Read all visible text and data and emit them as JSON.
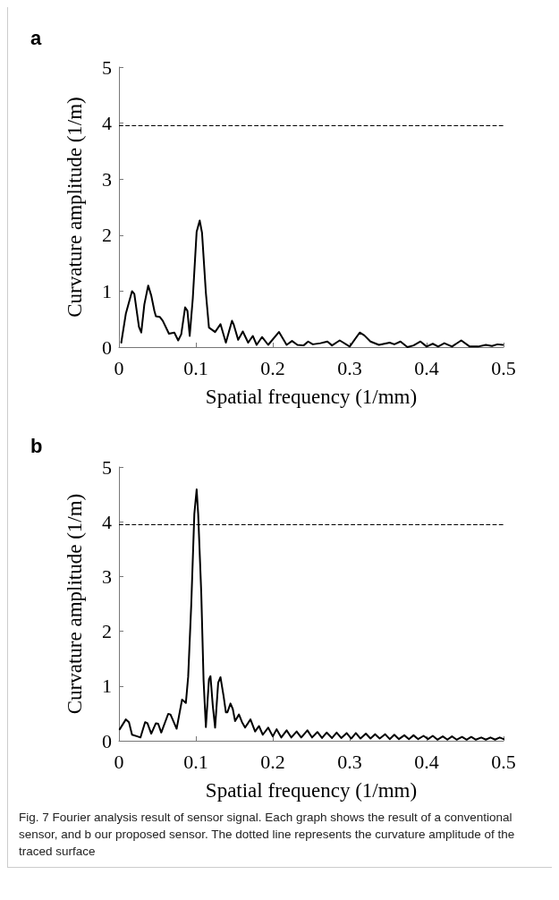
{
  "chart_data": [
    {
      "type": "line",
      "title": "a",
      "xlabel": "Spatial frequency (1/mm)",
      "ylabel": "Curvature amplitude (1/m)",
      "xlim": [
        0,
        0.5
      ],
      "ylim": [
        0,
        5
      ],
      "xticks": [
        0,
        0.1,
        0.2,
        0.3,
        0.4,
        0.5
      ],
      "yticks": [
        0,
        1,
        2,
        3,
        4,
        5
      ],
      "grid": false,
      "marker": "none",
      "line_style": "solid",
      "ref_lines": [
        {
          "axis": "y",
          "value": 3.95,
          "line_style": "dashed",
          "color": "#000000"
        }
      ],
      "series": [
        {
          "color": "#000000",
          "x": [
            0.003,
            0.009,
            0.017,
            0.02,
            0.026,
            0.029,
            0.033,
            0.038,
            0.042,
            0.046,
            0.048,
            0.053,
            0.057,
            0.065,
            0.072,
            0.077,
            0.081,
            0.086,
            0.089,
            0.092,
            0.096,
            0.101,
            0.105,
            0.108,
            0.113,
            0.117,
            0.125,
            0.132,
            0.139,
            0.147,
            0.149,
            0.155,
            0.161,
            0.168,
            0.174,
            0.179,
            0.186,
            0.194,
            0.208,
            0.218,
            0.225,
            0.232,
            0.24,
            0.246,
            0.252,
            0.262,
            0.271,
            0.277,
            0.287,
            0.3,
            0.313,
            0.319,
            0.327,
            0.338,
            0.352,
            0.358,
            0.366,
            0.375,
            0.383,
            0.392,
            0.4,
            0.408,
            0.415,
            0.423,
            0.433,
            0.445,
            0.456,
            0.467,
            0.477,
            0.485,
            0.492,
            0.499
          ],
          "values": [
            0.08,
            0.6,
            1.0,
            0.95,
            0.36,
            0.26,
            0.76,
            1.1,
            0.92,
            0.65,
            0.55,
            0.54,
            0.47,
            0.24,
            0.26,
            0.12,
            0.23,
            0.71,
            0.65,
            0.2,
            0.87,
            2.06,
            2.26,
            2.04,
            0.97,
            0.35,
            0.27,
            0.41,
            0.08,
            0.47,
            0.41,
            0.13,
            0.28,
            0.08,
            0.2,
            0.04,
            0.18,
            0.04,
            0.27,
            0.04,
            0.11,
            0.04,
            0.03,
            0.1,
            0.05,
            0.07,
            0.1,
            0.03,
            0.12,
            0.01,
            0.26,
            0.21,
            0.1,
            0.04,
            0.08,
            0.05,
            0.1,
            0.0,
            0.03,
            0.1,
            0.01,
            0.06,
            0.01,
            0.07,
            0.01,
            0.12,
            0.01,
            0.01,
            0.04,
            0.02,
            0.05,
            0.04
          ]
        }
      ]
    },
    {
      "type": "line",
      "title": "b",
      "xlabel": "Spatial frequency (1/mm)",
      "ylabel": "Curvature amplitude (1/m)",
      "xlim": [
        0,
        0.5
      ],
      "ylim": [
        0,
        5
      ],
      "xticks": [
        0,
        0.1,
        0.2,
        0.3,
        0.4,
        0.5
      ],
      "yticks": [
        0,
        1,
        2,
        3,
        4,
        5
      ],
      "grid": false,
      "marker": "none",
      "line_style": "solid",
      "ref_lines": [
        {
          "axis": "y",
          "value": 3.95,
          "line_style": "dashed",
          "color": "#000000"
        }
      ],
      "annotations": [
        "Fig. 7  Fourier analysis result of sensor signal. Each graph shows the result of a conventional sensor, and b our proposed sensor. The dotted line represents the curvature amplitude of the traced surface"
      ],
      "series": [
        {
          "color": "#000000",
          "x": [
            0.001,
            0.009,
            0.013,
            0.017,
            0.024,
            0.028,
            0.034,
            0.037,
            0.042,
            0.048,
            0.051,
            0.055,
            0.064,
            0.067,
            0.075,
            0.082,
            0.087,
            0.09,
            0.094,
            0.098,
            0.101,
            0.103,
            0.107,
            0.11,
            0.113,
            0.117,
            0.119,
            0.122,
            0.125,
            0.129,
            0.132,
            0.136,
            0.139,
            0.141,
            0.145,
            0.148,
            0.151,
            0.156,
            0.16,
            0.164,
            0.171,
            0.177,
            0.182,
            0.187,
            0.194,
            0.2,
            0.205,
            0.211,
            0.218,
            0.224,
            0.231,
            0.237,
            0.245,
            0.251,
            0.258,
            0.264,
            0.27,
            0.277,
            0.283,
            0.289,
            0.296,
            0.302,
            0.308,
            0.314,
            0.321,
            0.327,
            0.333,
            0.339,
            0.346,
            0.352,
            0.358,
            0.364,
            0.371,
            0.377,
            0.383,
            0.389,
            0.396,
            0.402,
            0.408,
            0.414,
            0.421,
            0.427,
            0.433,
            0.439,
            0.446,
            0.452,
            0.458,
            0.464,
            0.471,
            0.477,
            0.483,
            0.489,
            0.495,
            0.5
          ],
          "values": [
            0.21,
            0.39,
            0.34,
            0.11,
            0.08,
            0.06,
            0.34,
            0.32,
            0.13,
            0.32,
            0.31,
            0.15,
            0.49,
            0.48,
            0.22,
            0.75,
            0.69,
            1.17,
            2.49,
            4.14,
            4.59,
            4.14,
            2.7,
            1.11,
            0.25,
            1.12,
            1.18,
            0.64,
            0.24,
            1.06,
            1.16,
            0.82,
            0.52,
            0.52,
            0.68,
            0.58,
            0.36,
            0.48,
            0.34,
            0.24,
            0.39,
            0.17,
            0.27,
            0.11,
            0.24,
            0.08,
            0.21,
            0.06,
            0.19,
            0.06,
            0.17,
            0.06,
            0.19,
            0.06,
            0.16,
            0.05,
            0.15,
            0.05,
            0.15,
            0.05,
            0.14,
            0.04,
            0.14,
            0.04,
            0.13,
            0.04,
            0.12,
            0.04,
            0.12,
            0.03,
            0.11,
            0.03,
            0.1,
            0.03,
            0.1,
            0.03,
            0.09,
            0.03,
            0.09,
            0.02,
            0.08,
            0.02,
            0.08,
            0.02,
            0.07,
            0.02,
            0.07,
            0.02,
            0.06,
            0.02,
            0.06,
            0.02,
            0.06,
            0.03
          ]
        }
      ]
    }
  ]
}
